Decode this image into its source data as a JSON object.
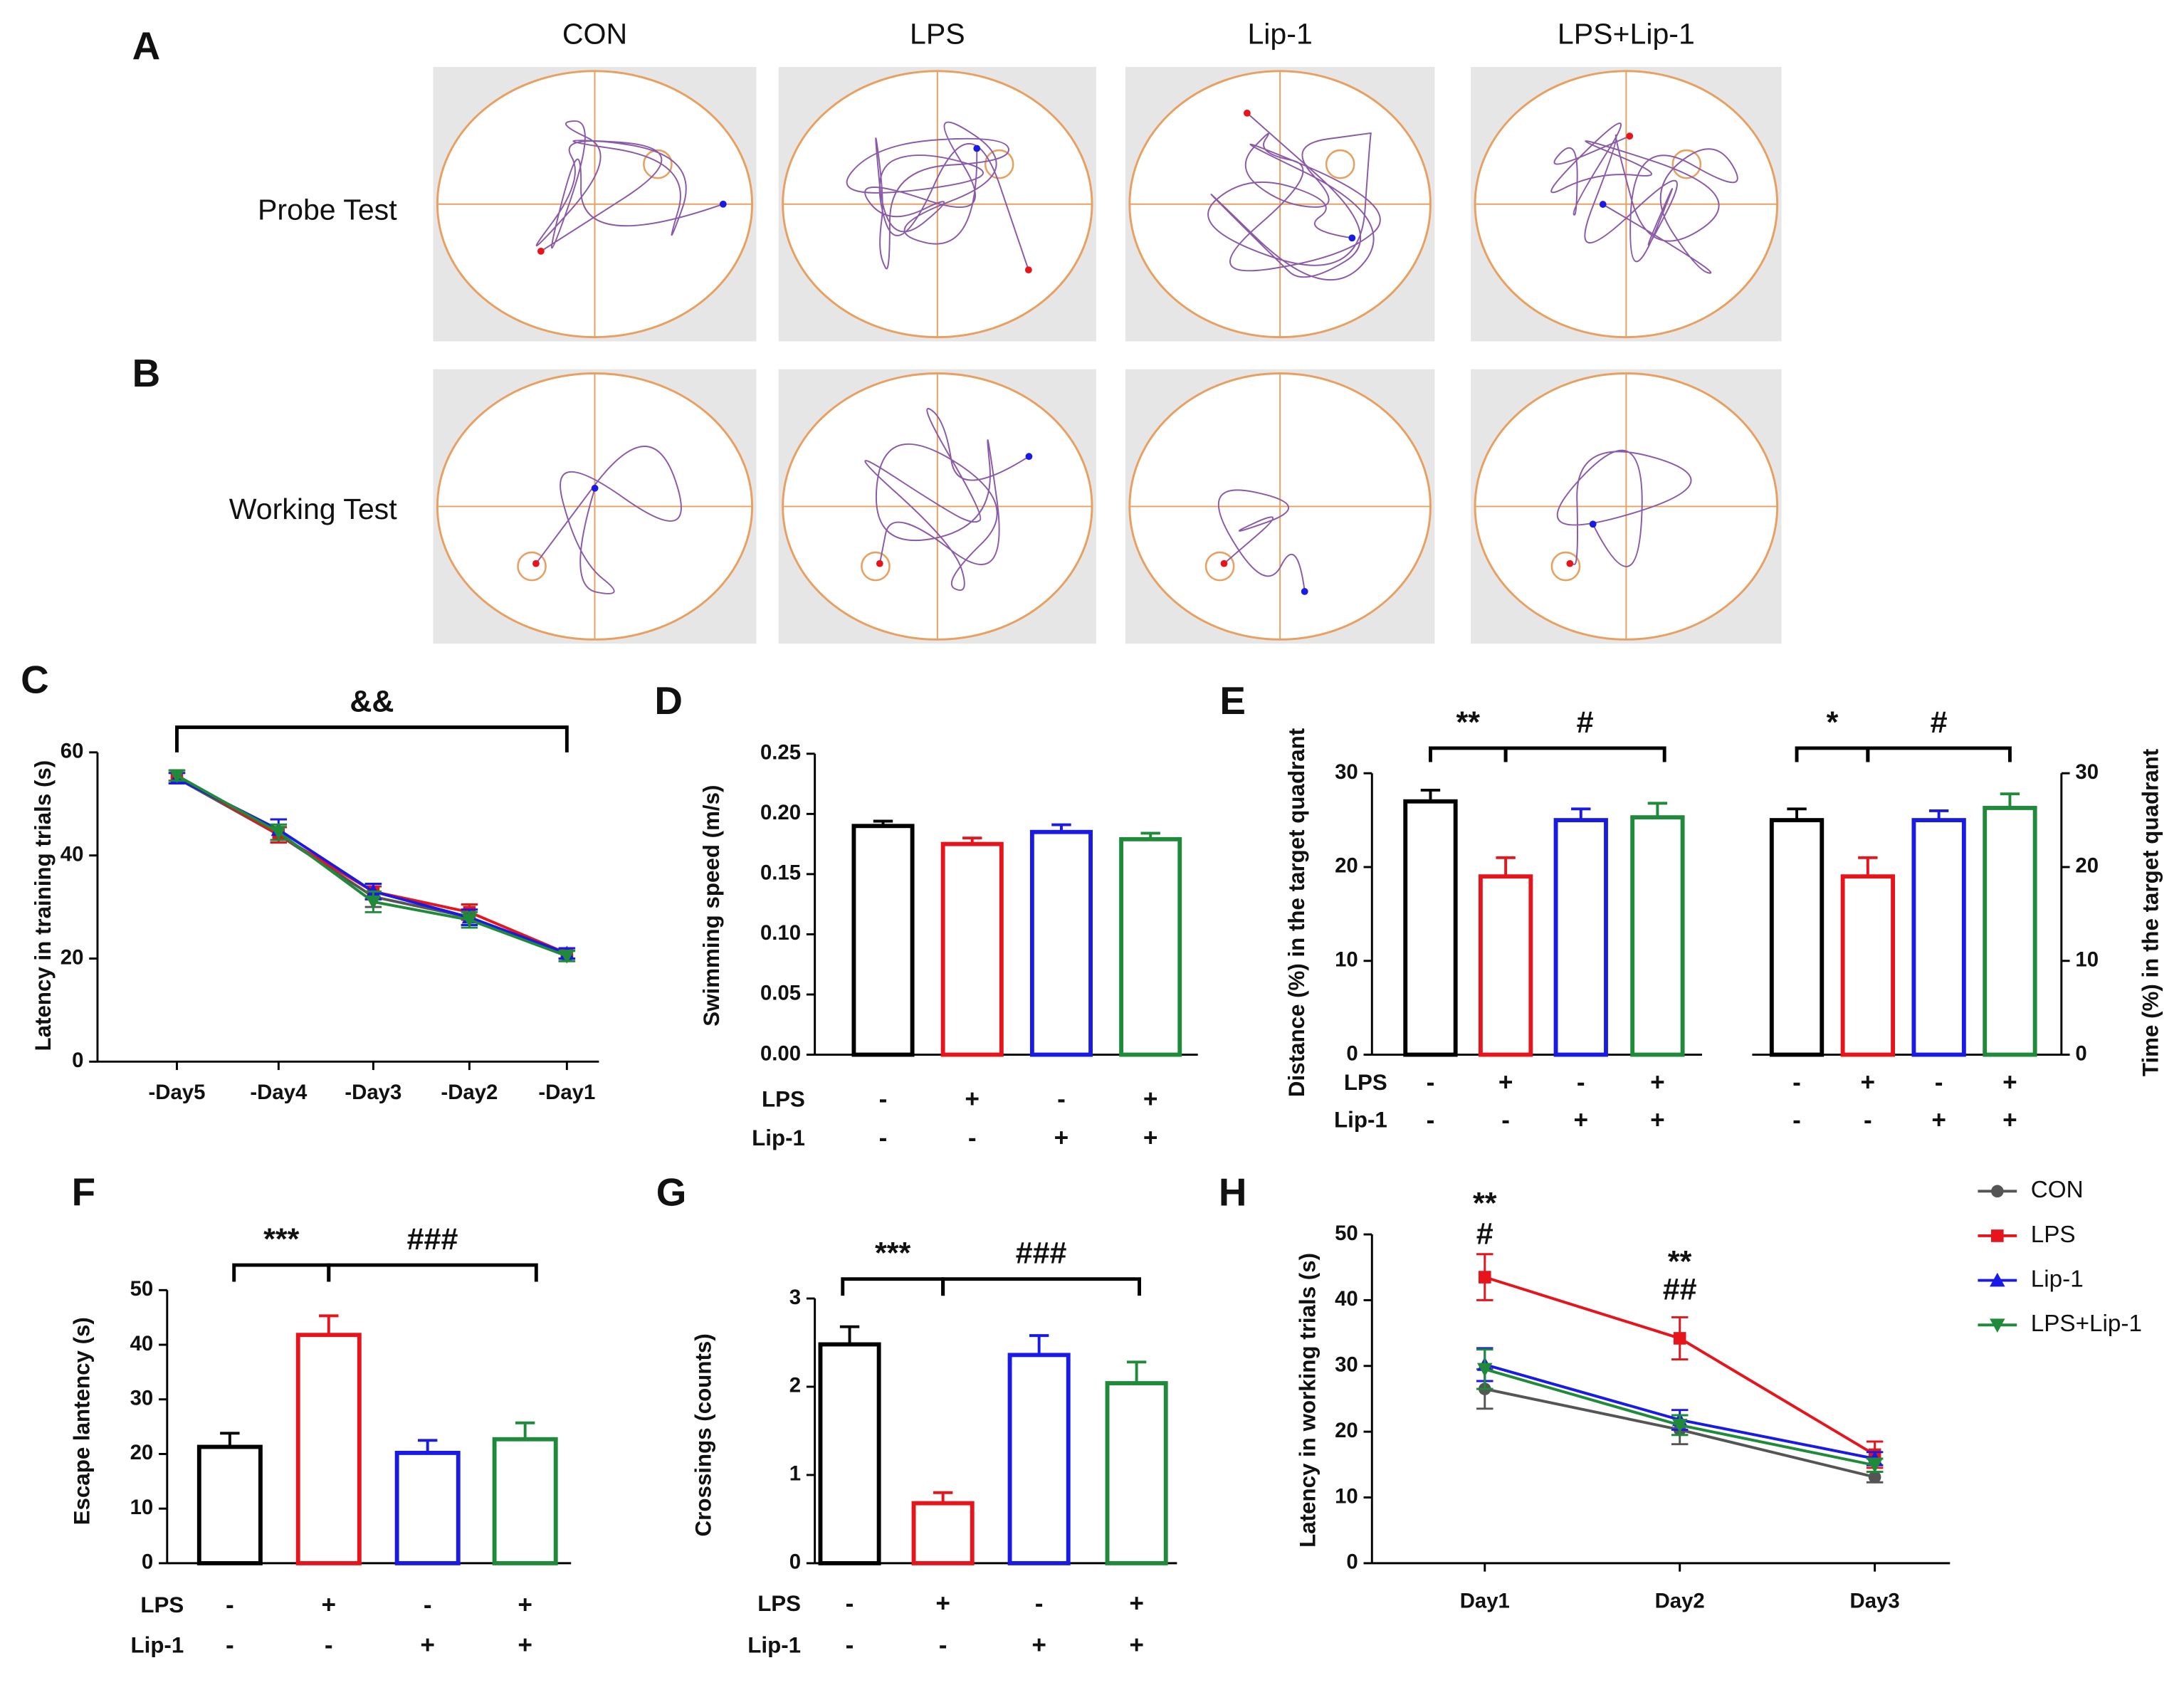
{
  "tracking": {
    "columns": [
      "CON",
      "LPS",
      "Lip-1",
      "LPS+Lip-1"
    ],
    "rows": [
      {
        "panel": "A",
        "label": "Probe Test"
      },
      {
        "panel": "B",
        "label": "Working Test"
      }
    ]
  },
  "chart_data": [
    {
      "type": "line",
      "panel": "C",
      "ylabel": "Latency in training trials (s)",
      "categories": [
        "-Day5",
        "-Day4",
        "-Day3",
        "-Day2",
        "-Day1"
      ],
      "ylim": [
        0,
        60
      ],
      "yticks": [
        0,
        20,
        40,
        60
      ],
      "series": [
        {
          "color": "#555555",
          "marker": "circle",
          "values": [
            55,
            44,
            32,
            28,
            20.5
          ],
          "errors": [
            1,
            1.5,
            2,
            1.5,
            1
          ]
        },
        {
          "color": "#e8141b",
          "marker": "square",
          "values": [
            55.5,
            44,
            33,
            29,
            21
          ],
          "errors": [
            1,
            1.5,
            1.5,
            1.5,
            1
          ]
        },
        {
          "color": "#1a1ae6",
          "marker": "triangle-up",
          "values": [
            55,
            45,
            33,
            28,
            21
          ],
          "errors": [
            1,
            2,
            1.5,
            1.5,
            1
          ]
        },
        {
          "color": "#1f8a3a",
          "marker": "triangle-down",
          "values": [
            55.5,
            44.5,
            31,
            27.5,
            20.5
          ],
          "errors": [
            1,
            1.5,
            2,
            1.5,
            1
          ]
        }
      ],
      "annotations": [
        "&&"
      ]
    },
    {
      "type": "bar",
      "panel": "D",
      "ylabel": "Swimming speed (m/s)",
      "ylim": [
        0,
        0.25
      ],
      "yticks": [
        {
          "value": 0,
          "label": "0.00"
        },
        0.05,
        {
          "value": 0.1,
          "label": "0.10"
        },
        0.15,
        {
          "value": 0.2,
          "label": "0.20"
        },
        0.25
      ],
      "values": [
        0.19,
        0.175,
        0.185,
        0.179
      ],
      "errors": [
        0.004,
        0.005,
        0.006,
        0.005
      ],
      "colors": [
        "#000000",
        "#e8141b",
        "#1a1ae6",
        "#1f8a3a"
      ],
      "conditions": [
        {
          "name": "LPS",
          "values": [
            "-",
            "+",
            "-",
            "+"
          ]
        },
        {
          "name": "Lip-1",
          "values": [
            "-",
            "-",
            "+",
            "+"
          ]
        }
      ]
    },
    {
      "type": "bar",
      "panel": "E",
      "ylabel": "Distance (%) in the target quadrant",
      "y2label": "Time (%) in the target quadrant",
      "ylim": [
        0,
        30
      ],
      "yticks": [
        0,
        10,
        20,
        30
      ],
      "y2lim": [
        0,
        30
      ],
      "y2ticks": [
        0,
        10,
        20,
        30
      ],
      "colors": [
        "#000000",
        "#e8141b",
        "#1a1ae6",
        "#1f8a3a"
      ],
      "series": [
        {
          "axis": "y",
          "values": [
            27,
            19,
            25,
            25.3
          ],
          "errors": [
            1.2,
            2,
            1.2,
            1.5
          ]
        },
        {
          "axis": "y2",
          "values": [
            25,
            19,
            25,
            26.3
          ],
          "errors": [
            1.2,
            2,
            1,
            1.5
          ]
        }
      ],
      "conditions": [
        {
          "name": "LPS",
          "values": [
            "-",
            "+",
            "-",
            "+",
            "-",
            "+",
            "-",
            "+"
          ]
        },
        {
          "name": "Lip-1",
          "values": [
            "-",
            "-",
            "+",
            "+",
            "-",
            "-",
            "+",
            "+"
          ]
        }
      ],
      "annotations": [
        "**",
        "#",
        "*",
        "#"
      ]
    },
    {
      "type": "bar",
      "panel": "F",
      "ylabel": "Escape lantency (s)",
      "ylim": [
        0,
        50
      ],
      "yticks": [
        0,
        10,
        20,
        30,
        40,
        50
      ],
      "values": [
        21.3,
        41.8,
        20.2,
        22.7
      ],
      "errors": [
        2.5,
        3.5,
        2.3,
        3
      ],
      "colors": [
        "#000000",
        "#e8141b",
        "#1a1ae6",
        "#1f8a3a"
      ],
      "conditions": [
        {
          "name": "LPS",
          "values": [
            "-",
            "+",
            "-",
            "+"
          ]
        },
        {
          "name": "Lip-1",
          "values": [
            "-",
            "-",
            "+",
            "+"
          ]
        }
      ],
      "annotations": [
        "***",
        "###"
      ]
    },
    {
      "type": "bar",
      "panel": "G",
      "ylabel": "Crossings (counts)",
      "ylim": [
        0,
        3
      ],
      "yticks": [
        0,
        1,
        2,
        3
      ],
      "values": [
        2.48,
        0.68,
        2.36,
        2.04
      ],
      "errors": [
        0.2,
        0.12,
        0.22,
        0.24
      ],
      "colors": [
        "#000000",
        "#e8141b",
        "#1a1ae6",
        "#1f8a3a"
      ],
      "conditions": [
        {
          "name": "LPS",
          "values": [
            "-",
            "+",
            "-",
            "+"
          ]
        },
        {
          "name": "Lip-1",
          "values": [
            "-",
            "-",
            "+",
            "+"
          ]
        }
      ],
      "annotations": [
        "***",
        "###"
      ]
    },
    {
      "type": "line",
      "panel": "H",
      "ylabel": "Latency in working trials (s)",
      "categories": [
        "Day1",
        "Day2",
        "Day3"
      ],
      "ylim": [
        0,
        50
      ],
      "yticks": [
        0,
        10,
        20,
        30,
        40,
        50
      ],
      "legend": "upper right",
      "series": [
        {
          "name": "CON",
          "color": "#555555",
          "marker": "circle",
          "values": [
            26.5,
            20.3,
            13.1
          ],
          "errors": [
            3,
            2.2,
            0.8
          ]
        },
        {
          "name": "LPS",
          "color": "#e8141b",
          "marker": "square",
          "values": [
            43.5,
            34.2,
            16.5
          ],
          "errors": [
            3.5,
            3.2,
            2
          ]
        },
        {
          "name": "Lip-1",
          "color": "#1a1ae6",
          "marker": "triangle-up",
          "values": [
            30.2,
            21.8,
            15.9
          ],
          "errors": [
            2.5,
            1.5,
            1
          ]
        },
        {
          "name": "LPS+Lip-1",
          "color": "#1f8a3a",
          "marker": "triangle-down",
          "values": [
            29.5,
            21,
            14.9
          ],
          "errors": [
            3,
            1.5,
            1
          ]
        }
      ],
      "annotations": [
        "**",
        "#",
        "**",
        "##"
      ]
    }
  ]
}
